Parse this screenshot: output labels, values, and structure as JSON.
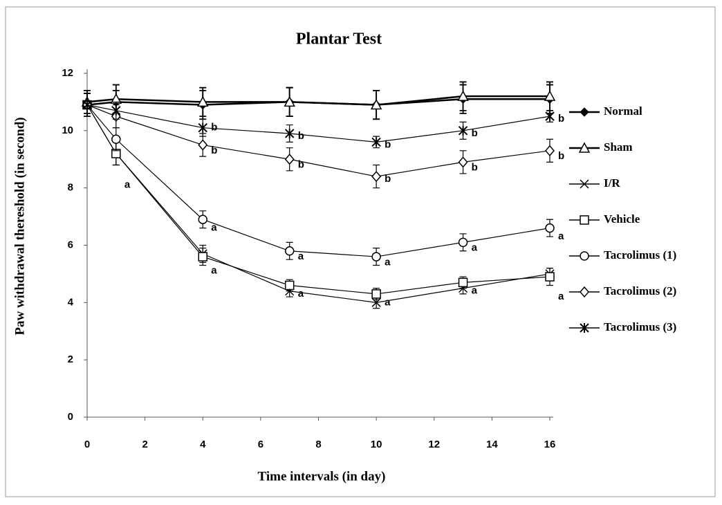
{
  "chart_data": {
    "type": "line",
    "title": "Plantar Test",
    "x_label": "Time intervals (in day)",
    "y_label": "Paw withdrawal thereshold (in second)",
    "x": [
      0,
      1,
      4,
      7,
      10,
      13,
      16
    ],
    "xlim": [
      0,
      16
    ],
    "xticks": [
      0,
      2,
      4,
      6,
      8,
      10,
      12,
      14,
      16
    ],
    "ylim": [
      0,
      12
    ],
    "yticks": [
      0,
      2,
      4,
      6,
      8,
      10,
      12
    ],
    "grid": false,
    "legend": "right",
    "series": [
      {
        "name": "Normal",
        "color": "#000000",
        "marker": "filled-diamond",
        "values": [
          10.9,
          11.0,
          10.9,
          11.0,
          10.9,
          11.1,
          11.1
        ],
        "errors": [
          0.4,
          0.4,
          0.5,
          0.5,
          0.5,
          0.5,
          0.5
        ]
      },
      {
        "name": "Sham",
        "color": "#000000",
        "marker": "triangle",
        "values": [
          11.0,
          11.1,
          11.0,
          11.0,
          10.9,
          11.2,
          11.2
        ],
        "errors": [
          0.4,
          0.5,
          0.5,
          0.5,
          0.5,
          0.5,
          0.5
        ]
      },
      {
        "name": "I/R",
        "color": "#000000",
        "marker": "x",
        "values": [
          10.9,
          9.2,
          5.7,
          4.4,
          4.0,
          4.5,
          5.0
        ],
        "errors": [
          0.4,
          0.4,
          0.3,
          0.2,
          0.2,
          0.2,
          0.2
        ]
      },
      {
        "name": "Vehicle",
        "color": "#000000",
        "marker": "square",
        "values": [
          10.9,
          9.2,
          5.6,
          4.6,
          4.3,
          4.7,
          4.9
        ],
        "errors": [
          0.4,
          0.4,
          0.3,
          0.2,
          0.2,
          0.2,
          0.3
        ]
      },
      {
        "name": "Tacrolimus (1)",
        "color": "#000000",
        "marker": "circle",
        "values": [
          10.9,
          9.7,
          6.9,
          5.8,
          5.6,
          6.1,
          6.6
        ],
        "errors": [
          0.4,
          0.4,
          0.3,
          0.3,
          0.3,
          0.3,
          0.3
        ]
      },
      {
        "name": "Tacrolimus (2)",
        "color": "#000000",
        "marker": "diamond",
        "values": [
          10.9,
          10.5,
          9.5,
          9.0,
          8.4,
          8.9,
          9.3
        ],
        "errors": [
          0.4,
          0.4,
          0.4,
          0.4,
          0.4,
          0.4,
          0.4
        ]
      },
      {
        "name": "Tacrolimus (3)",
        "color": "#000000",
        "marker": "asterisk",
        "values": [
          10.9,
          10.7,
          10.1,
          9.9,
          9.6,
          10.0,
          10.5
        ],
        "errors": [
          0.4,
          0.3,
          0.3,
          0.3,
          0.2,
          0.3,
          0.2
        ]
      }
    ],
    "annotations": [
      {
        "text": "a",
        "x": 1,
        "y": 8.1
      },
      {
        "text": "a",
        "x": 4,
        "y": 6.6
      },
      {
        "text": "a",
        "x": 4,
        "y": 5.1
      },
      {
        "text": "a",
        "x": 7,
        "y": 5.6
      },
      {
        "text": "a",
        "x": 7,
        "y": 4.3
      },
      {
        "text": "a",
        "x": 10,
        "y": 5.4
      },
      {
        "text": "a",
        "x": 10,
        "y": 4.0
      },
      {
        "text": "a",
        "x": 13,
        "y": 5.9
      },
      {
        "text": "a",
        "x": 13,
        "y": 4.4
      },
      {
        "text": "a",
        "x": 16,
        "y": 6.3
      },
      {
        "text": "a",
        "x": 16,
        "y": 4.2
      },
      {
        "text": "b",
        "x": 4,
        "y": 10.1
      },
      {
        "text": "b",
        "x": 7,
        "y": 9.8
      },
      {
        "text": "b",
        "x": 10,
        "y": 9.5
      },
      {
        "text": "b",
        "x": 13,
        "y": 9.9
      },
      {
        "text": "b",
        "x": 16,
        "y": 10.4
      },
      {
        "text": "b",
        "x": 4,
        "y": 9.3
      },
      {
        "text": "b",
        "x": 7,
        "y": 8.8
      },
      {
        "text": "b",
        "x": 10,
        "y": 8.3
      },
      {
        "text": "b",
        "x": 13,
        "y": 8.7
      },
      {
        "text": "b",
        "x": 16,
        "y": 9.1
      }
    ]
  }
}
